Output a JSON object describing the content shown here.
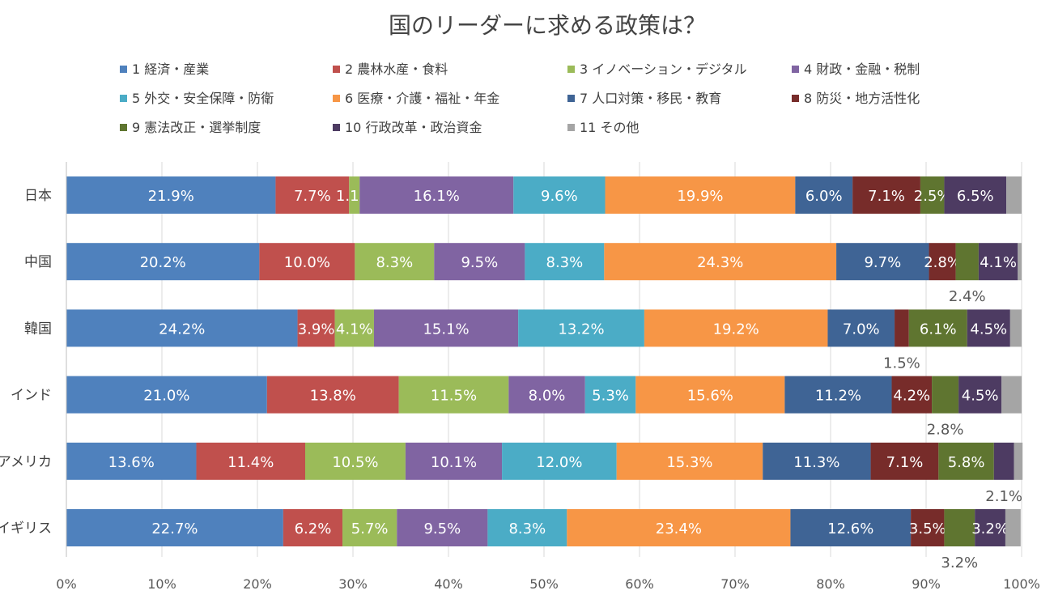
{
  "chart_data": {
    "type": "bar",
    "orientation": "horizontal",
    "stacked": "percent",
    "title": "国のリーダーに求める政策は？",
    "categories": [
      "日本",
      "中国",
      "韓国",
      "インド",
      "アメリカ",
      "イギリス"
    ],
    "xlim": [
      0,
      100
    ],
    "xticks": [
      "0%",
      "10%",
      "20%",
      "30%",
      "40%",
      "50%",
      "60%",
      "70%",
      "80%",
      "90%",
      "100%"
    ],
    "grid": true,
    "legend_position": "top",
    "series": [
      {
        "name": "1 経済・産業",
        "color": "#4f81bd",
        "values": [
          21.9,
          20.2,
          24.2,
          21.0,
          13.6,
          22.7
        ],
        "labels": [
          "21.9%",
          "20.2%",
          "24.2%",
          "21.0%",
          "13.6%",
          "22.7%"
        ]
      },
      {
        "name": "2 農林水産・食料",
        "color": "#c0504d",
        "values": [
          7.7,
          10.0,
          3.9,
          13.8,
          11.4,
          6.2
        ],
        "labels": [
          "7.7%",
          "10.0%",
          "3.9%",
          "13.8%",
          "11.4%",
          "6.2%"
        ]
      },
      {
        "name": "3 イノベーション・デジタル",
        "color": "#9bbb59",
        "values": [
          1.1,
          8.3,
          4.1,
          11.5,
          10.5,
          5.7
        ],
        "labels": [
          "1.1%",
          "8.3%",
          "4.1%",
          "11.5%",
          "10.5%",
          "5.7%"
        ]
      },
      {
        "name": "4 財政・金融・税制",
        "color": "#8064a2",
        "values": [
          16.1,
          9.5,
          15.1,
          8.0,
          10.1,
          9.5
        ],
        "labels": [
          "16.1%",
          "9.5%",
          "15.1%",
          "8.0%",
          "10.1%",
          "9.5%"
        ]
      },
      {
        "name": "5 外交・安全保障・防衛",
        "color": "#4bacc6",
        "values": [
          9.6,
          8.3,
          13.2,
          5.3,
          12.0,
          8.3
        ],
        "labels": [
          "9.6%",
          "8.3%",
          "13.2%",
          "5.3%",
          "12.0%",
          "8.3%"
        ]
      },
      {
        "name": "6 医療・介護・福祉・年金",
        "color": "#f79646",
        "values": [
          19.9,
          24.3,
          19.2,
          15.6,
          15.3,
          23.4
        ],
        "labels": [
          "19.9%",
          "24.3%",
          "19.2%",
          "15.6%",
          "15.3%",
          "23.4%"
        ]
      },
      {
        "name": "7 人口対策・移民・教育",
        "color": "#3f6495",
        "values": [
          6.0,
          9.7,
          7.0,
          11.2,
          11.3,
          12.6
        ],
        "labels": [
          "6.0%",
          "9.7%",
          "7.0%",
          "11.2%",
          "11.3%",
          "12.6%"
        ]
      },
      {
        "name": "8 防災・地方活性化",
        "color": "#772c2a",
        "values": [
          7.1,
          2.8,
          1.5,
          4.2,
          7.1,
          3.5
        ],
        "labels": [
          "7.1%",
          "2.8%",
          "1.5%",
          "4.2%",
          "7.1%",
          "3.5%"
        ],
        "label_outside": [
          false,
          false,
          true,
          false,
          false,
          false
        ]
      },
      {
        "name": "9 憲法改正・選挙制度",
        "color": "#5f7530",
        "values": [
          2.5,
          2.4,
          6.1,
          2.8,
          5.8,
          3.2
        ],
        "labels": [
          "2.5%",
          "2.4%",
          "6.1%",
          "2.8%",
          "5.8%",
          "3.2%"
        ],
        "label_outside": [
          false,
          true,
          false,
          true,
          false,
          true
        ]
      },
      {
        "name": "10 行政改革・政治資金",
        "color": "#4d3b62",
        "values": [
          6.5,
          4.1,
          4.5,
          4.5,
          2.1,
          3.2
        ],
        "labels": [
          "6.5%",
          "4.1%",
          "4.5%",
          "4.5%",
          "2.1%",
          "3.2%"
        ],
        "label_outside": [
          false,
          false,
          false,
          false,
          true,
          false
        ]
      },
      {
        "name": "11 その他",
        "color": "#a5a5a5",
        "values": [
          1.6,
          0.4,
          1.2,
          2.1,
          0.9,
          1.6
        ],
        "labels": [
          "",
          "",
          "",
          "",
          "",
          ""
        ]
      }
    ]
  }
}
